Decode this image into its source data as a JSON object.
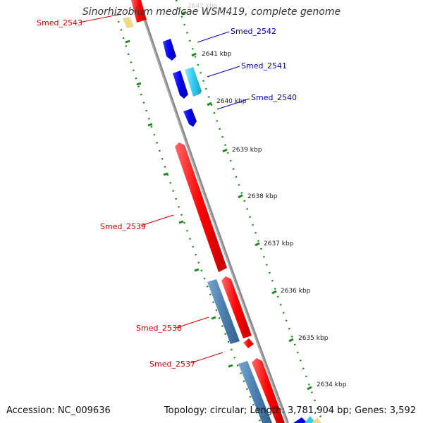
{
  "title": "Sinorhizobium medicae WSM419, complete genome",
  "accession": "Accession: NC_009636",
  "summary": "Topology: circular; Length: 3,781,904 bp; Genes: 3,592",
  "colors": {
    "backbone": "#808080",
    "forward_gene": "#ff0000",
    "reverse_gene": "#0000ee",
    "light_blue_gene": "#33ccee",
    "steel_blue_gene": "#4a7eb0",
    "tick": "#1f8a1f",
    "forward_label": "#cc0000",
    "reverse_label": "#0000aa"
  },
  "ticks": [
    {
      "label": "2642 kbp",
      "faded": true
    },
    {
      "label": "2641 kbp"
    },
    {
      "label": "2640 kbp"
    },
    {
      "label": "2639 kbp"
    },
    {
      "label": "2638 kbp"
    },
    {
      "label": "2637 kbp"
    },
    {
      "label": "2636 kbp"
    },
    {
      "label": "2635 kbp"
    },
    {
      "label": "2634 kbp"
    }
  ],
  "genes": {
    "forward": [
      {
        "name": "Smed_2543"
      },
      {
        "name": "Smed_2539"
      },
      {
        "name": "Smed_2538"
      },
      {
        "name": "Smed_2537"
      }
    ],
    "reverse": [
      {
        "name": "Smed_2542"
      },
      {
        "name": "Smed_2541"
      },
      {
        "name": "Smed_2540"
      }
    ]
  }
}
